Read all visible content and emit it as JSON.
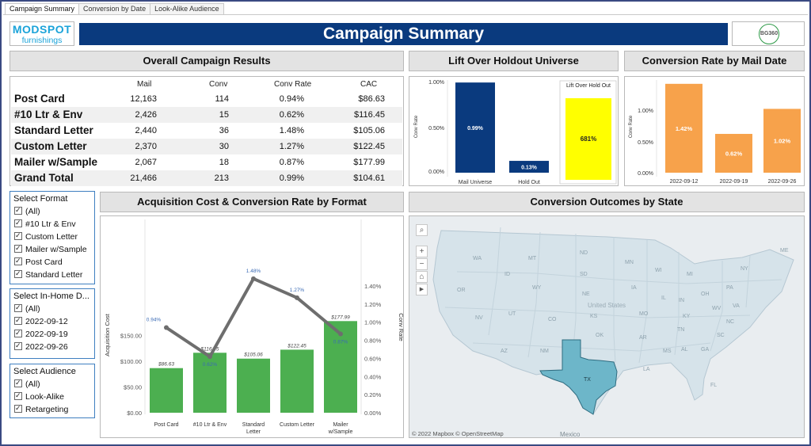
{
  "tabs": [
    "Campaign Summary",
    "Conversion by Date",
    "Look-Alike Audience"
  ],
  "logo": {
    "line1": "MODSPOT",
    "line2": "furnishings"
  },
  "header": {
    "title": "Campaign Summary"
  },
  "partner_logo": {
    "text": "BG360"
  },
  "overall": {
    "title": "Overall Campaign Results",
    "columns": [
      "Mail",
      "Conv",
      "Conv Rate",
      "CAC"
    ],
    "rows": [
      {
        "name": "Post Card",
        "mail": "12,163",
        "conv": "114",
        "rate": "0.94%",
        "cac": "$86.63"
      },
      {
        "name": "#10 Ltr & Env",
        "mail": "2,426",
        "conv": "15",
        "rate": "0.62%",
        "cac": "$116.45"
      },
      {
        "name": "Standard Letter",
        "mail": "2,440",
        "conv": "36",
        "rate": "1.48%",
        "cac": "$105.06"
      },
      {
        "name": "Custom Letter",
        "mail": "2,370",
        "conv": "30",
        "rate": "1.27%",
        "cac": "$122.45"
      },
      {
        "name": "Mailer w/Sample",
        "mail": "2,067",
        "conv": "18",
        "rate": "0.87%",
        "cac": "$177.99"
      },
      {
        "name": "Grand Total",
        "mail": "21,466",
        "conv": "213",
        "rate": "0.99%",
        "cac": "$104.61"
      }
    ]
  },
  "lift": {
    "title": "Lift Over Holdout Universe",
    "ylabel": "Conv Rate",
    "yticks": [
      "1.00%",
      "0.50%",
      "0.00%"
    ],
    "bars": [
      {
        "label": "Mail Universe",
        "value": 0.99,
        "text": "0.99%"
      },
      {
        "label": "Hold Out",
        "value": 0.13,
        "text": "0.13%"
      }
    ],
    "kpi_title": "Lift Over Hold Out",
    "kpi_value": "681%",
    "colors": {
      "bar": "#0a3a7e",
      "kpi": "#ffff00"
    }
  },
  "mail_date": {
    "title": "Conversion Rate by Mail Date",
    "ylabel": "Conv Rate",
    "yticks": [
      "1.00%",
      "0.50%",
      "0.00%"
    ],
    "bars": [
      {
        "label": "2022-09-12",
        "value": 1.42,
        "text": "1.42%"
      },
      {
        "label": "2022-09-19",
        "value": 0.62,
        "text": "0.62%"
      },
      {
        "label": "2022-09-26",
        "value": 1.02,
        "text": "1.02%"
      }
    ],
    "color": "#f7a24b"
  },
  "filters": [
    {
      "title": "Select Format",
      "items": [
        "(All)",
        "#10 Ltr & Env",
        "Custom Letter",
        "Mailer w/Sample",
        "Post Card",
        "Standard Letter"
      ]
    },
    {
      "title": "Select In-Home D...",
      "items": [
        "(All)",
        "2022-09-12",
        "2022-09-19",
        "2022-09-26"
      ]
    },
    {
      "title": "Select Audience",
      "items": [
        "(All)",
        "Look-Alike",
        "Retargeting"
      ]
    }
  ],
  "acq_chart": {
    "title": "Acquisition Cost & Conversion Rate by Format",
    "ylabel_left": "Acquisition Cost",
    "ylabel_right": "Conv Rate",
    "left_ticks": [
      "$150.00",
      "$100.00",
      "$50.00",
      "$0.00"
    ],
    "right_ticks": [
      "1.40%",
      "1.20%",
      "1.00%",
      "0.80%",
      "0.60%",
      "0.40%",
      "0.20%",
      "0.00%"
    ]
  },
  "chart_data": {
    "type": "bar",
    "title": "Acquisition Cost & Conversion Rate by Format",
    "categories": [
      "Post Card",
      "#10 Ltr & Env",
      "Standard Letter",
      "Custom Letter",
      "Mailer w/Sample"
    ],
    "series": [
      {
        "name": "Acquisition Cost",
        "type": "bar",
        "values": [
          86.63,
          116.45,
          105.06,
          122.45,
          177.99
        ],
        "labels": [
          "$86.63",
          "$116.45",
          "$105.06",
          "$122.45",
          "$177.99"
        ],
        "color": "#4caf50"
      },
      {
        "name": "Conv Rate",
        "type": "line",
        "values": [
          0.94,
          0.62,
          1.48,
          1.27,
          0.87
        ],
        "labels": [
          "0.94%",
          "0.62%",
          "1.48%",
          "1.27%",
          "0.87%"
        ],
        "color": "#6e6e6e"
      }
    ],
    "xlabel": "",
    "ylabel": "Acquisition Cost",
    "ylabel_right": "Conv Rate",
    "ylim": [
      0,
      190
    ],
    "ylim_right": [
      0,
      1.57
    ]
  },
  "map": {
    "title": "Conversion Outcomes by State",
    "highlight_label": "TX",
    "highlight_color": "#6db6c9",
    "attribution": "© 2022 Mapbox  © OpenStreetMap",
    "country_label": "Mexico",
    "center_label": "United States",
    "state_labels": [
      "WA",
      "OR",
      "ID",
      "MT",
      "WY",
      "NV",
      "UT",
      "CO",
      "AZ",
      "NM",
      "ND",
      "SD",
      "NE",
      "KS",
      "OK",
      "MN",
      "IA",
      "MO",
      "AR",
      "LA",
      "WI",
      "IL",
      "MI",
      "IN",
      "OH",
      "KY",
      "TN",
      "MS",
      "AL",
      "GA",
      "FL",
      "SC",
      "NC",
      "VA",
      "WV",
      "PA",
      "NY",
      "ME"
    ],
    "controls": [
      "search-icon",
      "zoom-in-icon",
      "zoom-out-icon",
      "home-icon",
      "play-icon"
    ]
  }
}
